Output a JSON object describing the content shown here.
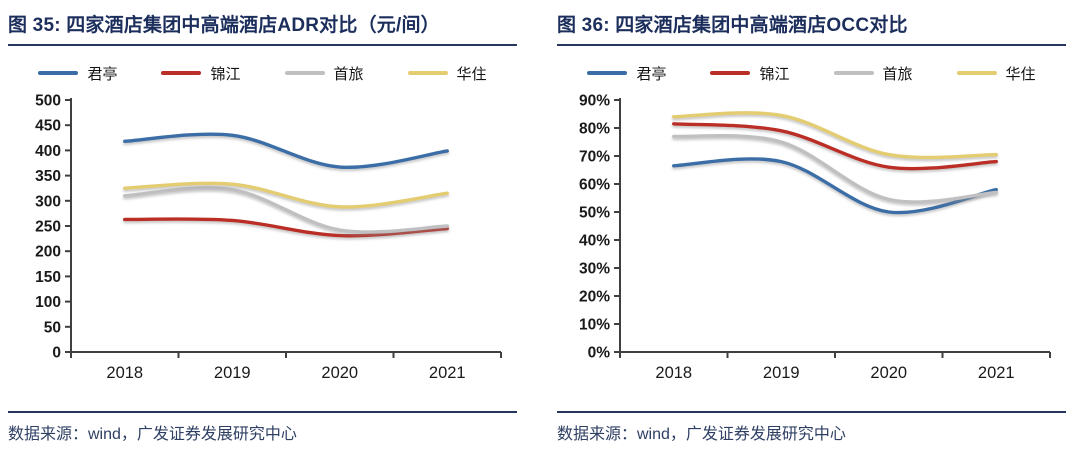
{
  "panels": [
    {
      "title": "图 35: 四家酒店集团中高端酒店ADR对比（元/间）",
      "source": "数据来源：wind，广发证券发展研究中心"
    },
    {
      "title": "图 36: 四家酒店集团中高端酒店OCC对比",
      "source": "数据来源：wind，广发证券发展研究中心"
    }
  ],
  "colors": {
    "title_navy": "#1c2e5c",
    "rule_navy": "#26365c",
    "source_navy": "#2e3f63",
    "axis": "#404040",
    "tick_label": "#1a1a1a",
    "junting_blue": "#3a6da6",
    "jinjiang_red": "#bb2f27",
    "shoulv_gray": "#c0c0c2",
    "huazhu_yellow": "#e4cc71"
  },
  "chart_data": [
    {
      "type": "line",
      "title": "四家酒店集团中高端酒店ADR对比（元/间）",
      "categories": [
        "2018",
        "2019",
        "2020",
        "2021"
      ],
      "series": [
        {
          "name": "君亭",
          "color": "#3a6da6",
          "values": [
            418,
            430,
            367,
            399
          ]
        },
        {
          "name": "锦江",
          "color": "#bb2f27",
          "values": [
            263,
            261,
            231,
            245
          ]
        },
        {
          "name": "首旅",
          "color": "#c0c0c2",
          "values": [
            310,
            322,
            242,
            250
          ]
        },
        {
          "name": "华住",
          "color": "#e4cc71",
          "values": [
            325,
            333,
            288,
            315
          ]
        }
      ],
      "xlabel": "",
      "ylabel": "",
      "ylim": [
        0,
        500
      ],
      "ytick_step": 50,
      "percent": false,
      "grid": false,
      "legend_position": "top",
      "line_style": "smooth"
    },
    {
      "type": "line",
      "title": "四家酒店集团中高端酒店OCC对比",
      "categories": [
        "2018",
        "2019",
        "2020",
        "2021"
      ],
      "series": [
        {
          "name": "君亭",
          "color": "#3a6da6",
          "values": [
            66.5,
            68,
            50,
            58
          ]
        },
        {
          "name": "锦江",
          "color": "#bb2f27",
          "values": [
            81.5,
            79,
            66,
            68
          ]
        },
        {
          "name": "首旅",
          "color": "#c0c0c2",
          "values": [
            77,
            75,
            54.5,
            57
          ]
        },
        {
          "name": "华住",
          "color": "#e4cc71",
          "values": [
            84,
            84.5,
            70.5,
            70.5
          ]
        }
      ],
      "xlabel": "",
      "ylabel": "",
      "ylim": [
        0,
        90
      ],
      "ytick_step": 10,
      "percent": true,
      "grid": false,
      "legend_position": "top",
      "line_style": "smooth"
    }
  ]
}
